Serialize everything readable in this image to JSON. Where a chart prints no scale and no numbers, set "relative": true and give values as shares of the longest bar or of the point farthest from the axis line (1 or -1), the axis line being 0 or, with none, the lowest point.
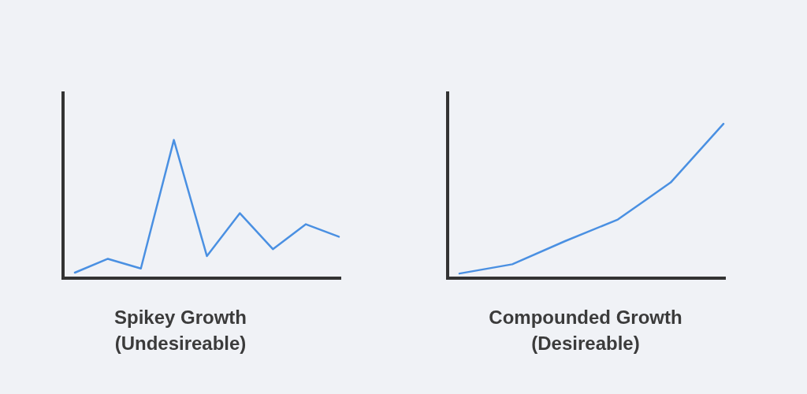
{
  "chart_data": [
    {
      "type": "line",
      "title": "Spikey Growth",
      "subtitle": "(Undesireable)",
      "categories": [
        null,
        null,
        null,
        null,
        null,
        null,
        null,
        null,
        null
      ],
      "values": [
        0.04,
        0.14,
        0.07,
        1,
        0.16,
        0.47,
        0.21,
        0.39,
        0.3
      ],
      "color": "#4a90e2",
      "relative": true,
      "tick_labels": false
    },
    {
      "type": "line",
      "title": "Compounded Growth",
      "subtitle": "(Desireable)",
      "categories": [
        null,
        null,
        null,
        null,
        null,
        null
      ],
      "values": [
        0.03,
        0.09,
        0.24,
        0.38,
        0.62,
        1
      ],
      "color": "#4a90e2",
      "relative": true,
      "tick_labels": false
    }
  ]
}
